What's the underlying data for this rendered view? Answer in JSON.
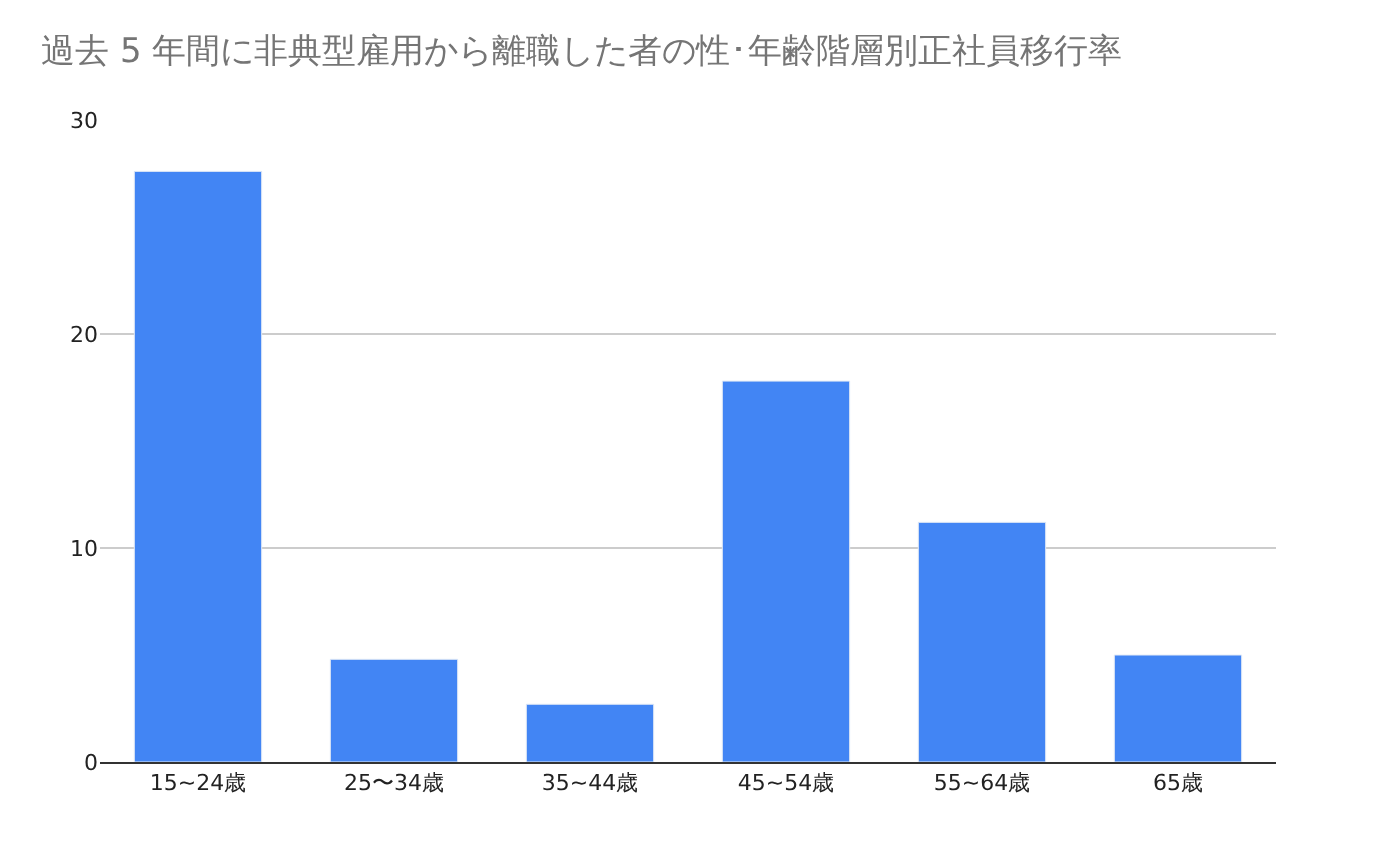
{
  "chart_data": {
    "type": "bar",
    "title": "過去 5 年間に非典型雇用から離職した者の性･年齢階層別正社員移行率",
    "categories": [
      "15~24歳",
      "25〜34歳",
      "35~44歳",
      "45~54歳",
      "55~64歳",
      "65歳"
    ],
    "values": [
      27.6,
      4.8,
      2.7,
      17.8,
      11.2,
      5.0
    ],
    "color": "#4285f4",
    "ylim": [
      0,
      30
    ],
    "yticks": [
      0,
      10,
      20,
      30
    ],
    "grid": "y",
    "legend": false
  }
}
